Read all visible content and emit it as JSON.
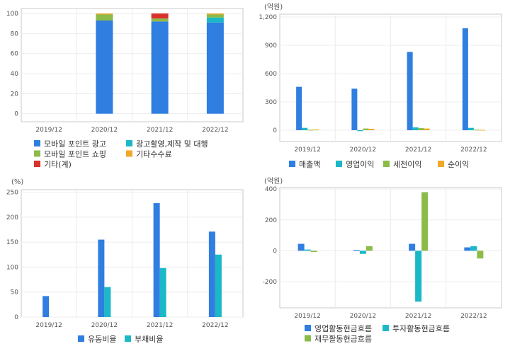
{
  "chart_data": [
    {
      "type": "bar",
      "stacked": true,
      "unit": "",
      "categories": [
        "2019/12",
        "2020/12",
        "2021/12",
        "2022/12"
      ],
      "ylim": [
        -8,
        105
      ],
      "yticks": [
        0,
        20,
        40,
        60,
        80,
        100
      ],
      "grid": true,
      "legend_position": "bottom",
      "series": [
        {
          "name": "모바일 포인트 광고",
          "color": "#2f7ee0",
          "values": [
            0,
            93,
            92,
            91
          ]
        },
        {
          "name": "광고촬영,제작 및 대행",
          "color": "#1bb8c8",
          "values": [
            0,
            0,
            0,
            5
          ]
        },
        {
          "name": "모바일 포인트 쇼핑",
          "color": "#8cbb4a",
          "values": [
            0,
            6,
            3,
            3
          ]
        },
        {
          "name": "기타수수료",
          "color": "#f0a82a",
          "values": [
            0,
            1,
            0,
            1
          ]
        },
        {
          "name": "기타(계)",
          "color": "#d9322a",
          "values": [
            0,
            0,
            5,
            0
          ]
        }
      ]
    },
    {
      "type": "bar",
      "unit": "(억원)",
      "categories": [
        "2019/12",
        "2020/12",
        "2021/12",
        "2022/12"
      ],
      "ylim": [
        -120,
        1230
      ],
      "yticks": [
        0,
        300,
        600,
        900,
        1200
      ],
      "ytick_labels": [
        "0",
        "300",
        "600",
        "900",
        "1,200"
      ],
      "grid": true,
      "legend_position": "bottom",
      "series": [
        {
          "name": "매출액",
          "color": "#2f7ee0",
          "values": [
            460,
            440,
            830,
            1080
          ]
        },
        {
          "name": "영업이익",
          "color": "#1bb8c8",
          "values": [
            25,
            -10,
            30,
            25
          ]
        },
        {
          "name": "세전이익",
          "color": "#8cbb4a",
          "values": [
            5,
            18,
            22,
            5
          ]
        },
        {
          "name": "순이익",
          "color": "#f0a82a",
          "values": [
            8,
            15,
            18,
            4
          ]
        }
      ]
    },
    {
      "type": "bar",
      "unit": "(%)",
      "categories": [
        "2019/12",
        "2020/12",
        "2021/12",
        "2022/12"
      ],
      "ylim": [
        0,
        255
      ],
      "yticks": [
        0,
        50,
        100,
        150,
        200,
        250
      ],
      "grid": true,
      "legend_position": "bottom",
      "series": [
        {
          "name": "유동비율",
          "color": "#2f7ee0",
          "values": [
            42,
            155,
            228,
            171
          ]
        },
        {
          "name": "부채비율",
          "color": "#1bb8c8",
          "values": [
            0,
            60,
            98,
            125
          ]
        }
      ]
    },
    {
      "type": "bar",
      "unit": "(억원)",
      "categories": [
        "2019/12",
        "2020/12",
        "2021/12",
        "2022/12"
      ],
      "ylim": [
        -370,
        410
      ],
      "yticks": [
        -200,
        0,
        200,
        400
      ],
      "grid": true,
      "legend_position": "bottom",
      "series": [
        {
          "name": "영업활동현금흐름",
          "color": "#2f7ee0",
          "values": [
            45,
            5,
            45,
            22
          ]
        },
        {
          "name": "투자활동현금흐름",
          "color": "#1bb8c8",
          "values": [
            8,
            -20,
            -330,
            30
          ]
        },
        {
          "name": "재무활동현금흐름",
          "color": "#8cbb4a",
          "values": [
            -8,
            30,
            380,
            -50
          ]
        }
      ]
    }
  ]
}
